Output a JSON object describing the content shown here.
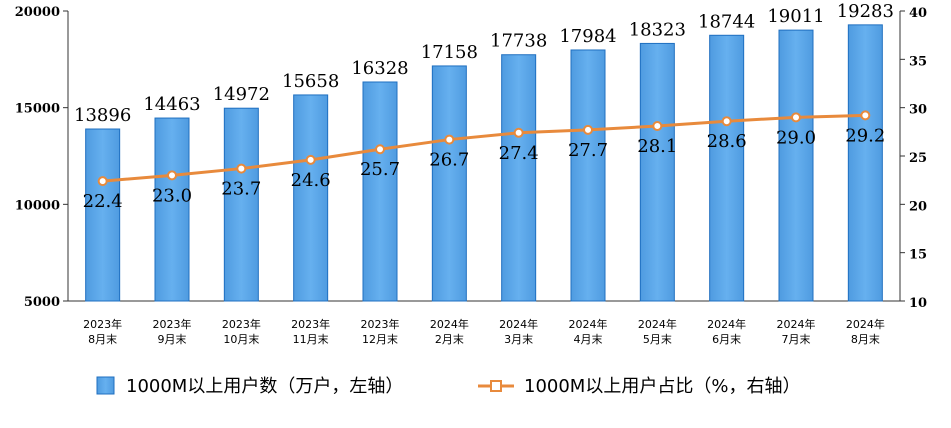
{
  "chart_data": {
    "type": "bar",
    "categories": [
      [
        "2023年",
        "8月末"
      ],
      [
        "2023年",
        "9月末"
      ],
      [
        "2023年",
        "10月末"
      ],
      [
        "2023年",
        "11月末"
      ],
      [
        "2023年",
        "12月末"
      ],
      [
        "2024年",
        "2月末"
      ],
      [
        "2024年",
        "3月末"
      ],
      [
        "2024年",
        "4月末"
      ],
      [
        "2024年",
        "5月末"
      ],
      [
        "2024年",
        "6月末"
      ],
      [
        "2024年",
        "7月末"
      ],
      [
        "2024年",
        "8月末"
      ]
    ],
    "series": [
      {
        "name": "1000M以上用户数（万户，左轴）",
        "type": "bar",
        "axis": "left",
        "values": [
          13896,
          14463,
          14972,
          15658,
          16328,
          17158,
          17738,
          17984,
          18323,
          18744,
          19011,
          19283
        ],
        "labels": [
          "13896",
          "14463",
          "14972",
          "15658",
          "16328",
          "17158",
          "17738",
          "17984",
          "18323",
          "18744",
          "19011",
          "19283"
        ]
      },
      {
        "name": "1000M以上用户占比（%，右轴）",
        "type": "line",
        "axis": "right",
        "values": [
          22.4,
          23.0,
          23.7,
          24.6,
          25.7,
          26.7,
          27.4,
          27.7,
          28.1,
          28.6,
          29.0,
          29.2
        ],
        "labels": [
          "22.4",
          "23.0",
          "23.7",
          "24.6",
          "25.7",
          "26.7",
          "27.4",
          "27.7",
          "28.1",
          "28.6",
          "29.0",
          "29.2"
        ]
      }
    ],
    "y_left": {
      "min": 5000,
      "max": 20000,
      "ticks": [
        "5000",
        "10000",
        "15000",
        "20000"
      ]
    },
    "y_right": {
      "min": 10,
      "max": 40,
      "ticks": [
        "10",
        "15",
        "20",
        "25",
        "30",
        "35",
        "40"
      ]
    },
    "grid": false,
    "legend": "bottom",
    "colors": {
      "bar": "#5aa5e6",
      "bar_edge": "#1f6fc0",
      "line": "#e88a3c",
      "marker_fill": "#ffffff"
    }
  }
}
